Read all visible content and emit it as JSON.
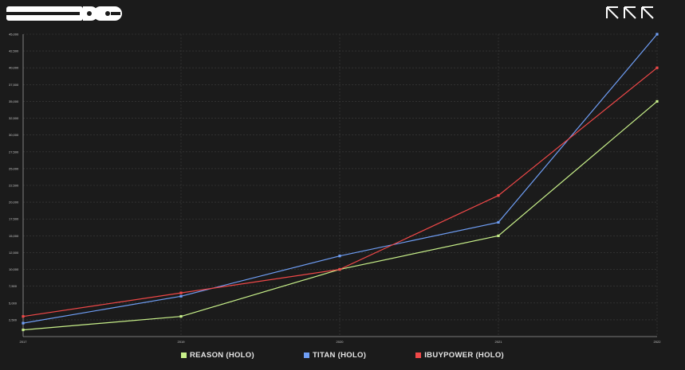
{
  "chart_data": {
    "type": "line",
    "x": [
      "2017",
      "2019",
      "2020",
      "2021",
      "2022"
    ],
    "y_ticks": [
      "2,500",
      "5,000",
      "7,500",
      "10,000",
      "12,500",
      "15,000",
      "17,500",
      "20,000",
      "22,500",
      "25,000",
      "27,500",
      "30,000",
      "32,500",
      "35,000",
      "37,500",
      "40,000",
      "42,500",
      "45,000"
    ],
    "ylim": [
      0,
      45000
    ],
    "grid": true,
    "legend_position": "bottom-center",
    "series": [
      {
        "name": "REASON (HOLO)",
        "color": "#c8f08a",
        "values": [
          1000,
          3000,
          10000,
          15000,
          35000
        ]
      },
      {
        "name": "TITAN (HOLO)",
        "color": "#6f9ef5",
        "values": [
          2000,
          6000,
          12000,
          17000,
          45000
        ]
      },
      {
        "name": "IBUYPOWER (HOLO)",
        "color": "#f04848",
        "values": [
          3000,
          6500,
          10000,
          21000,
          40000
        ]
      }
    ]
  },
  "branding": {
    "left_logo": "logo",
    "right_logo": "logo"
  }
}
